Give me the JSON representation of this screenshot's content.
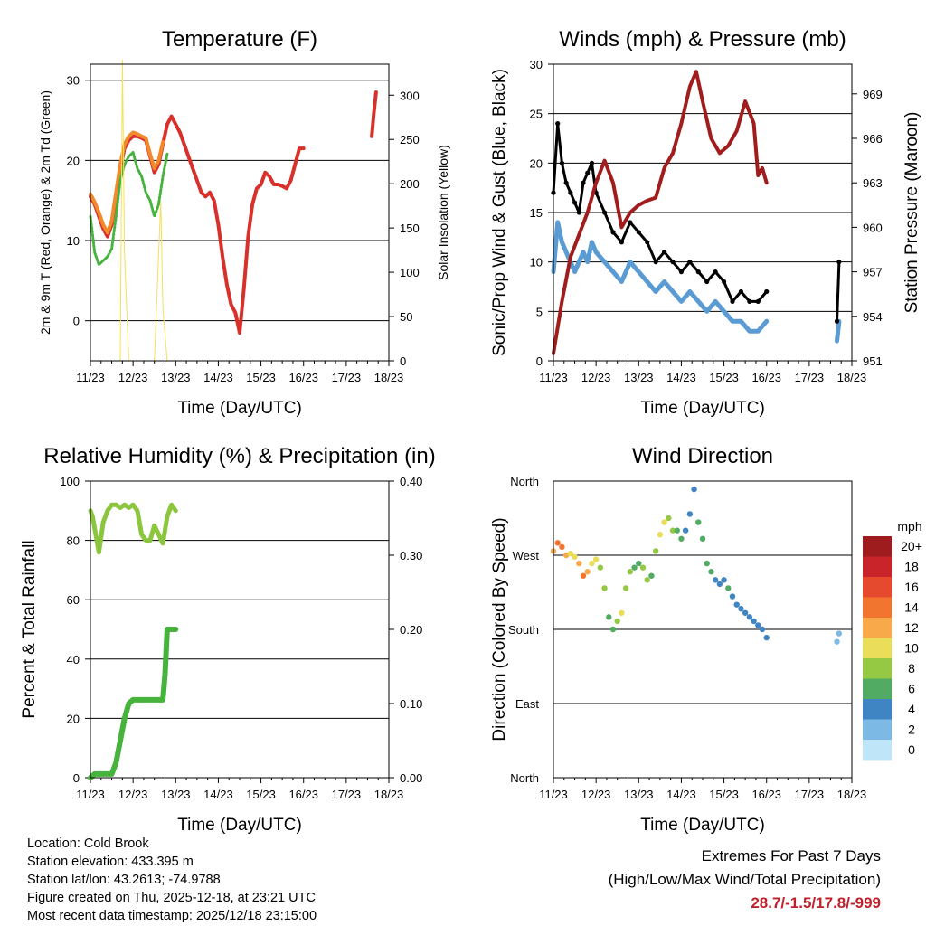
{
  "colors": {
    "temp_2m": "#d8312c",
    "temp_9m": "#f28a2b",
    "dewpoint": "#46b33f",
    "solar": "#f5e05a",
    "sonic_wind": "#5a9bd4",
    "gust": "#000000",
    "pressure": "#a11d1d",
    "rh": "#8cc63f",
    "precip": "#47b23c",
    "extremes_text": "#c0222d"
  },
  "chart_data": [
    {
      "type": "line",
      "title": "Temperature (F)",
      "xlabel": "Time (Day/UTC)",
      "ylabel": "2m & 9m T (Red, Orange) & 2m Td (Green)",
      "ylabel_right": "Solar Insolation (Yellow)",
      "xticks": [
        "11/23",
        "12/23",
        "13/23",
        "14/23",
        "15/23",
        "16/23",
        "17/23",
        "18/23"
      ],
      "xlim": [
        0,
        7
      ],
      "ylim": [
        -5,
        32
      ],
      "yticks": [
        0,
        10,
        20,
        30
      ],
      "ylim_right": [
        0,
        335
      ],
      "yticks_right": [
        0,
        50,
        100,
        150,
        200,
        250,
        300
      ],
      "series": [
        {
          "name": "2m T",
          "color": "temp_2m",
          "x": [
            0,
            0.1,
            0.2,
            0.3,
            0.4,
            0.5,
            0.6,
            0.7,
            0.8,
            0.9,
            1.0,
            1.1,
            1.2,
            1.3,
            1.4,
            1.5,
            1.6,
            1.7,
            1.8,
            1.9,
            2.0,
            2.1,
            2.2,
            2.3,
            2.4,
            2.5,
            2.6,
            2.7,
            2.8,
            2.9,
            3.0,
            3.1,
            3.2,
            3.3,
            3.4,
            3.5,
            3.6,
            3.7,
            3.8,
            3.9,
            4.0,
            4.1,
            4.2,
            4.3,
            4.4,
            4.5,
            4.6,
            4.7,
            4.8,
            4.9,
            5.0
          ],
          "values": [
            15.5,
            14.5,
            13.0,
            11.5,
            10.5,
            12.0,
            15.5,
            19.0,
            21.5,
            22.5,
            23.0,
            23.0,
            22.8,
            22.5,
            20.5,
            18.5,
            19.5,
            22.0,
            24.5,
            25.5,
            24.5,
            23.5,
            22.0,
            20.5,
            19.0,
            17.5,
            16.0,
            15.5,
            16.0,
            15.0,
            12.0,
            8.0,
            4.5,
            2.0,
            1.0,
            -1.5,
            4.0,
            10.5,
            14.5,
            16.5,
            17.0,
            18.5,
            18.0,
            17.0,
            17.0,
            16.8,
            16.5,
            17.5,
            19.5,
            21.5,
            21.5
          ]
        },
        {
          "name": "9m T",
          "color": "temp_9m",
          "x": [
            0,
            0.1,
            0.2,
            0.3,
            0.4,
            0.5,
            0.6,
            0.7,
            0.8,
            0.9,
            1.0,
            1.1,
            1.2,
            1.3,
            1.4,
            1.5,
            1.6,
            1.7
          ],
          "values": [
            15.8,
            14.8,
            13.5,
            12.0,
            11.0,
            12.5,
            16.0,
            19.5,
            22.0,
            23.0,
            23.5,
            23.3,
            23.0,
            22.8,
            20.8,
            19.0,
            20.0,
            22.3
          ]
        },
        {
          "name": "2m T (day 17-18)",
          "color": "temp_2m",
          "x": [
            6.6,
            6.65,
            6.7
          ],
          "values": [
            23.0,
            26.0,
            28.5
          ]
        },
        {
          "name": "2m Td",
          "color": "dewpoint",
          "x": [
            0,
            0.1,
            0.2,
            0.3,
            0.4,
            0.5,
            0.6,
            0.7,
            0.8,
            0.9,
            1.0,
            1.1,
            1.2,
            1.3,
            1.4,
            1.5,
            1.6,
            1.7,
            1.8
          ],
          "values": [
            13.0,
            8.5,
            7.0,
            7.5,
            8.0,
            9.0,
            13.0,
            17.5,
            19.5,
            20.5,
            21.0,
            19.0,
            18.0,
            16.0,
            15.0,
            13.0,
            14.5,
            18.0,
            20.8
          ]
        },
        {
          "name": "Solar",
          "color": "solar",
          "axis": "right",
          "x": [
            0.6,
            0.7,
            0.75,
            0.8,
            0.9,
            1.0,
            1.1,
            1.2,
            1.3,
            1.4,
            1.5,
            1.6,
            1.65,
            1.7,
            1.8
          ],
          "values": [
            0,
            0,
            340,
            120,
            0,
            0,
            0,
            0,
            0,
            0,
            0,
            120,
            180,
            60,
            0
          ]
        }
      ]
    },
    {
      "type": "line",
      "title": "Winds (mph) & Pressure (mb)",
      "xlabel": "Time (Day/UTC)",
      "ylabel": "Sonic/Prop Wind & Gust (Blue, Black)",
      "ylabel_right": "Station Pressure (Maroon)",
      "xticks": [
        "11/23",
        "12/23",
        "13/23",
        "14/23",
        "15/23",
        "16/23",
        "17/23",
        "18/23"
      ],
      "xlim": [
        0,
        7
      ],
      "ylim": [
        0,
        30
      ],
      "yticks": [
        0,
        5,
        10,
        15,
        20,
        25,
        30
      ],
      "ylim_right": [
        951,
        971
      ],
      "yticks_right": [
        951,
        954,
        957,
        960,
        963,
        966,
        969
      ],
      "series": [
        {
          "name": "Sonic wind",
          "color": "sonic_wind",
          "x": [
            0,
            0.1,
            0.2,
            0.3,
            0.4,
            0.5,
            0.6,
            0.7,
            0.8,
            0.9,
            1.0,
            1.2,
            1.4,
            1.6,
            1.8,
            2.0,
            2.2,
            2.4,
            2.6,
            2.8,
            3.0,
            3.2,
            3.4,
            3.6,
            3.8,
            4.0,
            4.2,
            4.4,
            4.6,
            4.8,
            5.0
          ],
          "values": [
            9,
            14,
            12,
            11,
            10,
            9,
            10,
            11,
            10,
            12,
            11,
            10,
            9,
            8,
            10,
            9,
            8,
            7,
            8,
            7,
            6,
            7,
            6,
            5,
            6,
            5,
            4,
            4,
            3,
            3,
            4
          ]
        },
        {
          "name": "Gust",
          "color": "gust",
          "x": [
            0,
            0.1,
            0.2,
            0.3,
            0.4,
            0.5,
            0.6,
            0.7,
            0.8,
            0.9,
            1.0,
            1.2,
            1.4,
            1.6,
            1.8,
            2.0,
            2.2,
            2.4,
            2.6,
            2.8,
            3.0,
            3.2,
            3.4,
            3.6,
            3.8,
            4.0,
            4.2,
            4.4,
            4.6,
            4.8,
            5.0
          ],
          "values": [
            17,
            24,
            20,
            18,
            17,
            16,
            15,
            18,
            19,
            20,
            17,
            15,
            13,
            12,
            14,
            13,
            12,
            10,
            11,
            10,
            9,
            10,
            9,
            8,
            9,
            8,
            6,
            7,
            6,
            6,
            7
          ]
        },
        {
          "name": "Pressure",
          "color": "pressure",
          "axis": "right",
          "x": [
            0,
            0.2,
            0.4,
            0.6,
            0.8,
            1.0,
            1.2,
            1.4,
            1.6,
            1.8,
            2.0,
            2.2,
            2.4,
            2.6,
            2.8,
            3.0,
            3.2,
            3.35,
            3.5,
            3.7,
            3.9,
            4.1,
            4.3,
            4.5,
            4.7,
            4.8,
            4.9,
            5.0
          ],
          "values": [
            951.5,
            955,
            958,
            959.5,
            961,
            963,
            964.5,
            963,
            960,
            961,
            961.5,
            961.8,
            962,
            964,
            965,
            967,
            969.5,
            970.5,
            968.5,
            966,
            965,
            965.5,
            966.5,
            968.5,
            967,
            963.5,
            964,
            963
          ]
        },
        {
          "name": "Sonic wind (day 17-18)",
          "color": "sonic_wind",
          "x": [
            6.65,
            6.7
          ],
          "values": [
            2,
            4
          ]
        },
        {
          "name": "Gust (day 17-18)",
          "color": "gust",
          "x": [
            6.65,
            6.7
          ],
          "values": [
            4,
            10
          ]
        }
      ]
    },
    {
      "type": "line",
      "title": "Relative Humidity (%) & Precipitation (in)",
      "xlabel": "Time (Day/UTC)",
      "ylabel": "Percent & Total Rainfall",
      "xticks": [
        "11/23",
        "12/23",
        "13/23",
        "14/23",
        "15/23",
        "16/23",
        "17/23",
        "18/23"
      ],
      "xlim": [
        0,
        7
      ],
      "ylim": [
        0,
        100
      ],
      "yticks": [
        0,
        20,
        40,
        60,
        80,
        100
      ],
      "ylim_right": [
        0,
        0.4
      ],
      "yticks_right": [
        "0.00",
        "0.10",
        "0.20",
        "0.30",
        "0.40"
      ],
      "series": [
        {
          "name": "RH",
          "color": "rh",
          "x": [
            0,
            0.05,
            0.1,
            0.15,
            0.2,
            0.3,
            0.4,
            0.5,
            0.6,
            0.7,
            0.8,
            0.9,
            1.0,
            1.1,
            1.2,
            1.3,
            1.4,
            1.5,
            1.6,
            1.7,
            1.8,
            1.9,
            2.0
          ],
          "values": [
            90,
            88,
            84,
            80,
            76,
            86,
            90,
            92,
            92,
            91,
            92,
            91,
            92,
            90,
            82,
            80,
            80,
            85,
            82,
            79,
            88,
            92,
            90
          ]
        },
        {
          "name": "Precip",
          "color": "precip",
          "axis": "right",
          "x": [
            0,
            0.1,
            0.3,
            0.5,
            0.6,
            0.7,
            0.8,
            0.9,
            1.0,
            1.1,
            1.2,
            1.3,
            1.4,
            1.5,
            1.6,
            1.7,
            1.75,
            1.8,
            1.9,
            2.0
          ],
          "values": [
            0,
            0.005,
            0.005,
            0.005,
            0.02,
            0.05,
            0.08,
            0.1,
            0.105,
            0.105,
            0.105,
            0.105,
            0.105,
            0.105,
            0.105,
            0.105,
            0.14,
            0.2,
            0.2,
            0.2
          ]
        }
      ]
    },
    {
      "type": "scatter",
      "title": "Wind Direction",
      "xlabel": "Time (Day/UTC)",
      "ylabel": "Direction (Colored By Speed)",
      "xticks": [
        "11/23",
        "12/23",
        "13/23",
        "14/23",
        "15/23",
        "16/23",
        "17/23",
        "18/23"
      ],
      "xlim": [
        0,
        7
      ],
      "ylim": [
        0,
        360
      ],
      "yticks": [
        "North",
        "East",
        "South",
        "West",
        "North"
      ],
      "series": [
        {
          "name": "Direction",
          "x": [
            0,
            0.1,
            0.2,
            0.3,
            0.4,
            0.5,
            0.6,
            0.7,
            0.8,
            0.9,
            1.0,
            1.1,
            1.2,
            1.3,
            1.4,
            1.5,
            1.6,
            1.7,
            1.8,
            1.9,
            2.0,
            2.1,
            2.2,
            2.3,
            2.4,
            2.5,
            2.6,
            2.7,
            2.8,
            2.9,
            3.0,
            3.1,
            3.2,
            3.3,
            3.4,
            3.5,
            3.6,
            3.7,
            3.8,
            3.9,
            4.0,
            4.1,
            4.2,
            4.3,
            4.4,
            4.5,
            4.6,
            4.7,
            4.8,
            4.9,
            5.0,
            6.65,
            6.7
          ],
          "values": [
            275,
            285,
            280,
            270,
            272,
            268,
            260,
            245,
            250,
            260,
            265,
            255,
            230,
            195,
            180,
            190,
            200,
            230,
            250,
            255,
            260,
            255,
            240,
            245,
            275,
            295,
            310,
            315,
            300,
            300,
            290,
            300,
            320,
            350,
            310,
            290,
            260,
            250,
            240,
            235,
            240,
            230,
            220,
            210,
            205,
            200,
            195,
            190,
            185,
            180,
            170,
            165,
            175
          ],
          "speeds": [
            12,
            14,
            13,
            11,
            9,
            10,
            12,
            13,
            12,
            10,
            9,
            8,
            7,
            6,
            5,
            7,
            9,
            8,
            7,
            6,
            6,
            7,
            8,
            6,
            7,
            9,
            10,
            8,
            7,
            6,
            5,
            4,
            4,
            3,
            5,
            6,
            5,
            5,
            4,
            4,
            4,
            5,
            4,
            4,
            3,
            4,
            4,
            3,
            3,
            3,
            3,
            2,
            2
          ]
        }
      ],
      "colorbar": {
        "title": "mph",
        "labels": [
          "20+",
          "18",
          "16",
          "14",
          "12",
          "10",
          "8",
          "6",
          "4",
          "2",
          "0"
        ],
        "colors": [
          "#9e1b1e",
          "#c8242a",
          "#e54a2e",
          "#f2752f",
          "#f8aa4a",
          "#e9dd5a",
          "#95c843",
          "#52ab62",
          "#3f84c3",
          "#7db9e5",
          "#bfe6f8"
        ]
      }
    }
  ],
  "info": {
    "location": "Location: Cold Brook",
    "elevation": "Station elevation: 433.395 m",
    "latlon": "Station lat/lon: 43.2613; -74.9788",
    "created": "Figure created on Thu, 2025-12-18, at 23:21 UTC",
    "recent": "Most recent data timestamp: 2025/12/18 23:15:00"
  },
  "extremes": {
    "heading": "Extremes For Past 7 Days",
    "subheading": "(High/Low/Max Wind/Total Precipitation)",
    "values": "28.7/-1.5/17.8/-999"
  }
}
